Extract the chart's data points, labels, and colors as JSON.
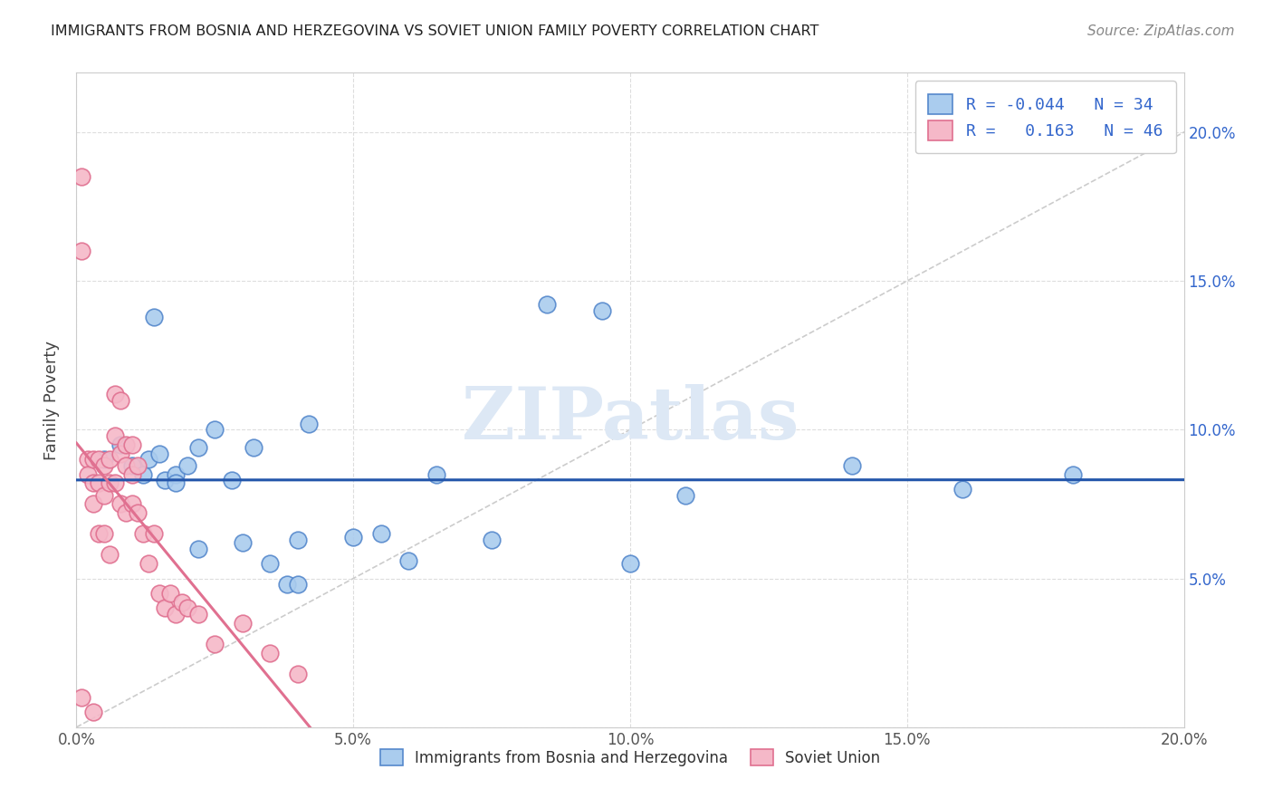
{
  "title": "IMMIGRANTS FROM BOSNIA AND HERZEGOVINA VS SOVIET UNION FAMILY POVERTY CORRELATION CHART",
  "source": "Source: ZipAtlas.com",
  "ylabel": "Family Poverty",
  "xlim": [
    0.0,
    0.2
  ],
  "ylim": [
    0.0,
    0.22
  ],
  "yticks": [
    0.0,
    0.05,
    0.1,
    0.15,
    0.2
  ],
  "xticks": [
    0.0,
    0.05,
    0.1,
    0.15,
    0.2
  ],
  "right_ytick_labels": [
    "",
    "5.0%",
    "10.0%",
    "15.0%",
    "20.0%"
  ],
  "xtick_labels": [
    "0.0%",
    "5.0%",
    "10.0%",
    "15.0%",
    "20.0%"
  ],
  "bosnia_color": "#aaccee",
  "soviet_color": "#f5b8c8",
  "bosnia_edge": "#5588cc",
  "soviet_edge": "#e07090",
  "bosnia_R": "-0.044",
  "bosnia_N": "34",
  "soviet_R": "0.163",
  "soviet_N": "46",
  "text_blue": "#3366cc",
  "watermark": "ZIPatlas",
  "watermark_color": "#dde8f5",
  "diagonal_color": "#cccccc",
  "bosnia_trend_color": "#2255aa",
  "soviet_trend_color": "#e07090",
  "bosnia_x": [
    0.005,
    0.008,
    0.01,
    0.012,
    0.013,
    0.014,
    0.015,
    0.016,
    0.018,
    0.018,
    0.02,
    0.022,
    0.022,
    0.025,
    0.028,
    0.03,
    0.032,
    0.035,
    0.038,
    0.04,
    0.04,
    0.042,
    0.05,
    0.055,
    0.06,
    0.065,
    0.075,
    0.085,
    0.095,
    0.1,
    0.11,
    0.14,
    0.16,
    0.18
  ],
  "bosnia_y": [
    0.09,
    0.095,
    0.088,
    0.085,
    0.09,
    0.138,
    0.092,
    0.083,
    0.085,
    0.082,
    0.088,
    0.094,
    0.06,
    0.1,
    0.083,
    0.062,
    0.094,
    0.055,
    0.048,
    0.048,
    0.063,
    0.102,
    0.064,
    0.065,
    0.056,
    0.085,
    0.063,
    0.142,
    0.14,
    0.055,
    0.078,
    0.088,
    0.08,
    0.085
  ],
  "soviet_x": [
    0.001,
    0.001,
    0.002,
    0.002,
    0.003,
    0.003,
    0.003,
    0.004,
    0.004,
    0.004,
    0.005,
    0.005,
    0.005,
    0.006,
    0.006,
    0.006,
    0.007,
    0.007,
    0.007,
    0.008,
    0.008,
    0.008,
    0.009,
    0.009,
    0.009,
    0.01,
    0.01,
    0.01,
    0.011,
    0.011,
    0.012,
    0.013,
    0.014,
    0.015,
    0.016,
    0.017,
    0.018,
    0.019,
    0.02,
    0.022,
    0.025,
    0.03,
    0.035,
    0.04,
    0.001,
    0.003
  ],
  "soviet_y": [
    0.185,
    0.16,
    0.09,
    0.085,
    0.09,
    0.082,
    0.075,
    0.09,
    0.082,
    0.065,
    0.088,
    0.078,
    0.065,
    0.09,
    0.082,
    0.058,
    0.112,
    0.098,
    0.082,
    0.11,
    0.092,
    0.075,
    0.095,
    0.088,
    0.072,
    0.095,
    0.085,
    0.075,
    0.088,
    0.072,
    0.065,
    0.055,
    0.065,
    0.045,
    0.04,
    0.045,
    0.038,
    0.042,
    0.04,
    0.038,
    0.028,
    0.035,
    0.025,
    0.018,
    0.01,
    0.005
  ]
}
